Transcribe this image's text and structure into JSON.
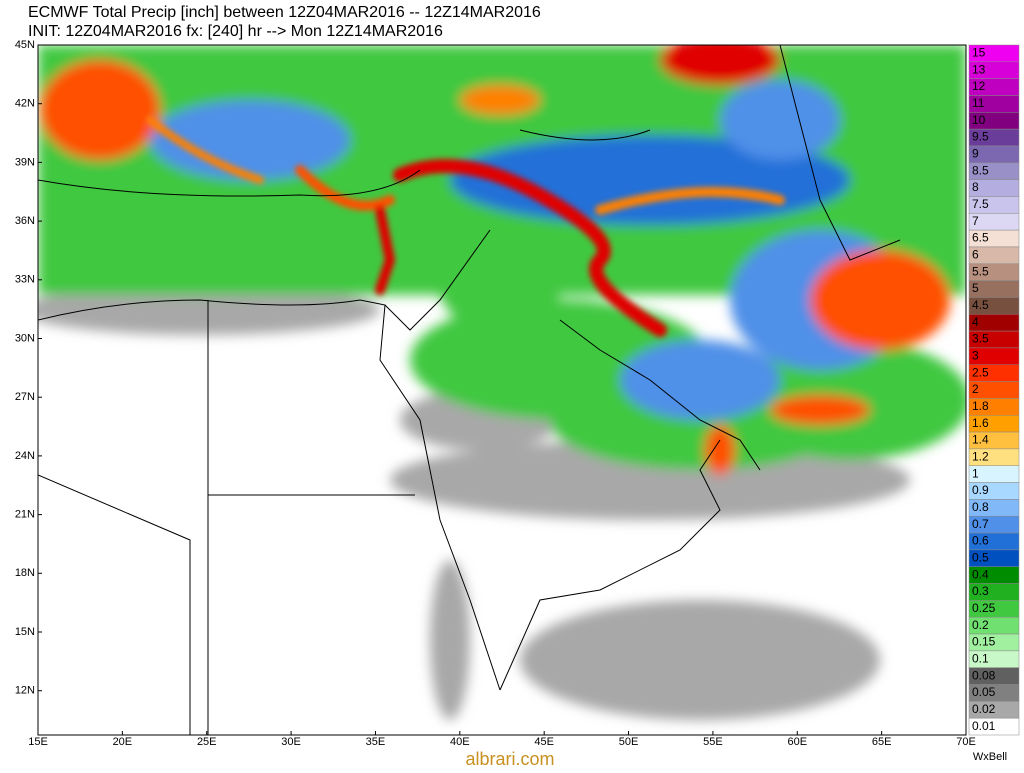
{
  "header": {
    "line1": "ECMWF Total Precip [inch] between 12Z04MAR2016 -- 12Z14MAR2016",
    "line2": "INIT: 12Z04MAR2016 fx: [240] hr --> Mon 12Z14MAR2016"
  },
  "lat_labels": [
    "45N",
    "42N",
    "39N",
    "36N",
    "33N",
    "30N",
    "27N",
    "24N",
    "21N",
    "18N",
    "15N",
    "12N"
  ],
  "lon_labels": [
    "15E",
    "20E",
    "25E",
    "30E",
    "35E",
    "40E",
    "45E",
    "50E",
    "55E",
    "60E",
    "65E",
    "70E"
  ],
  "colorbar": {
    "levels": [
      15,
      13,
      12,
      11,
      10,
      9.5,
      9,
      8.5,
      8,
      7.5,
      7,
      6.5,
      6,
      5.5,
      5,
      4.5,
      4,
      3.5,
      3,
      2.5,
      2,
      1.8,
      1.6,
      1.4,
      1.2,
      1,
      0.9,
      0.8,
      0.7,
      0.6,
      0.5,
      0.4,
      0.3,
      0.25,
      0.2,
      0.15,
      0.1,
      0.08,
      0.05,
      0.02,
      0.01
    ],
    "colors": [
      "#f000f0",
      "#d800d8",
      "#c000c0",
      "#a000a0",
      "#800080",
      "#6a3d9a",
      "#7b68b0",
      "#9a90c8",
      "#b4aee0",
      "#c8c4ec",
      "#dcd8f4",
      "#f4e0d4",
      "#d8b8a8",
      "#b89080",
      "#987060",
      "#785040",
      "#a00000",
      "#c80000",
      "#e00000",
      "#ff3000",
      "#ff5000",
      "#ff8000",
      "#ffa000",
      "#ffc040",
      "#ffe080",
      "#d8f4ff",
      "#a8d8ff",
      "#80b8f8",
      "#5090e8",
      "#2070d8",
      "#0050c0",
      "#008c00",
      "#20b020",
      "#40c840",
      "#70e070",
      "#a0f0a0",
      "#c8f8c8",
      "#606060",
      "#808080",
      "#a8a8a8",
      "#ffffff"
    ]
  },
  "watermark": "albrari.com",
  "credit": "WxBell"
}
